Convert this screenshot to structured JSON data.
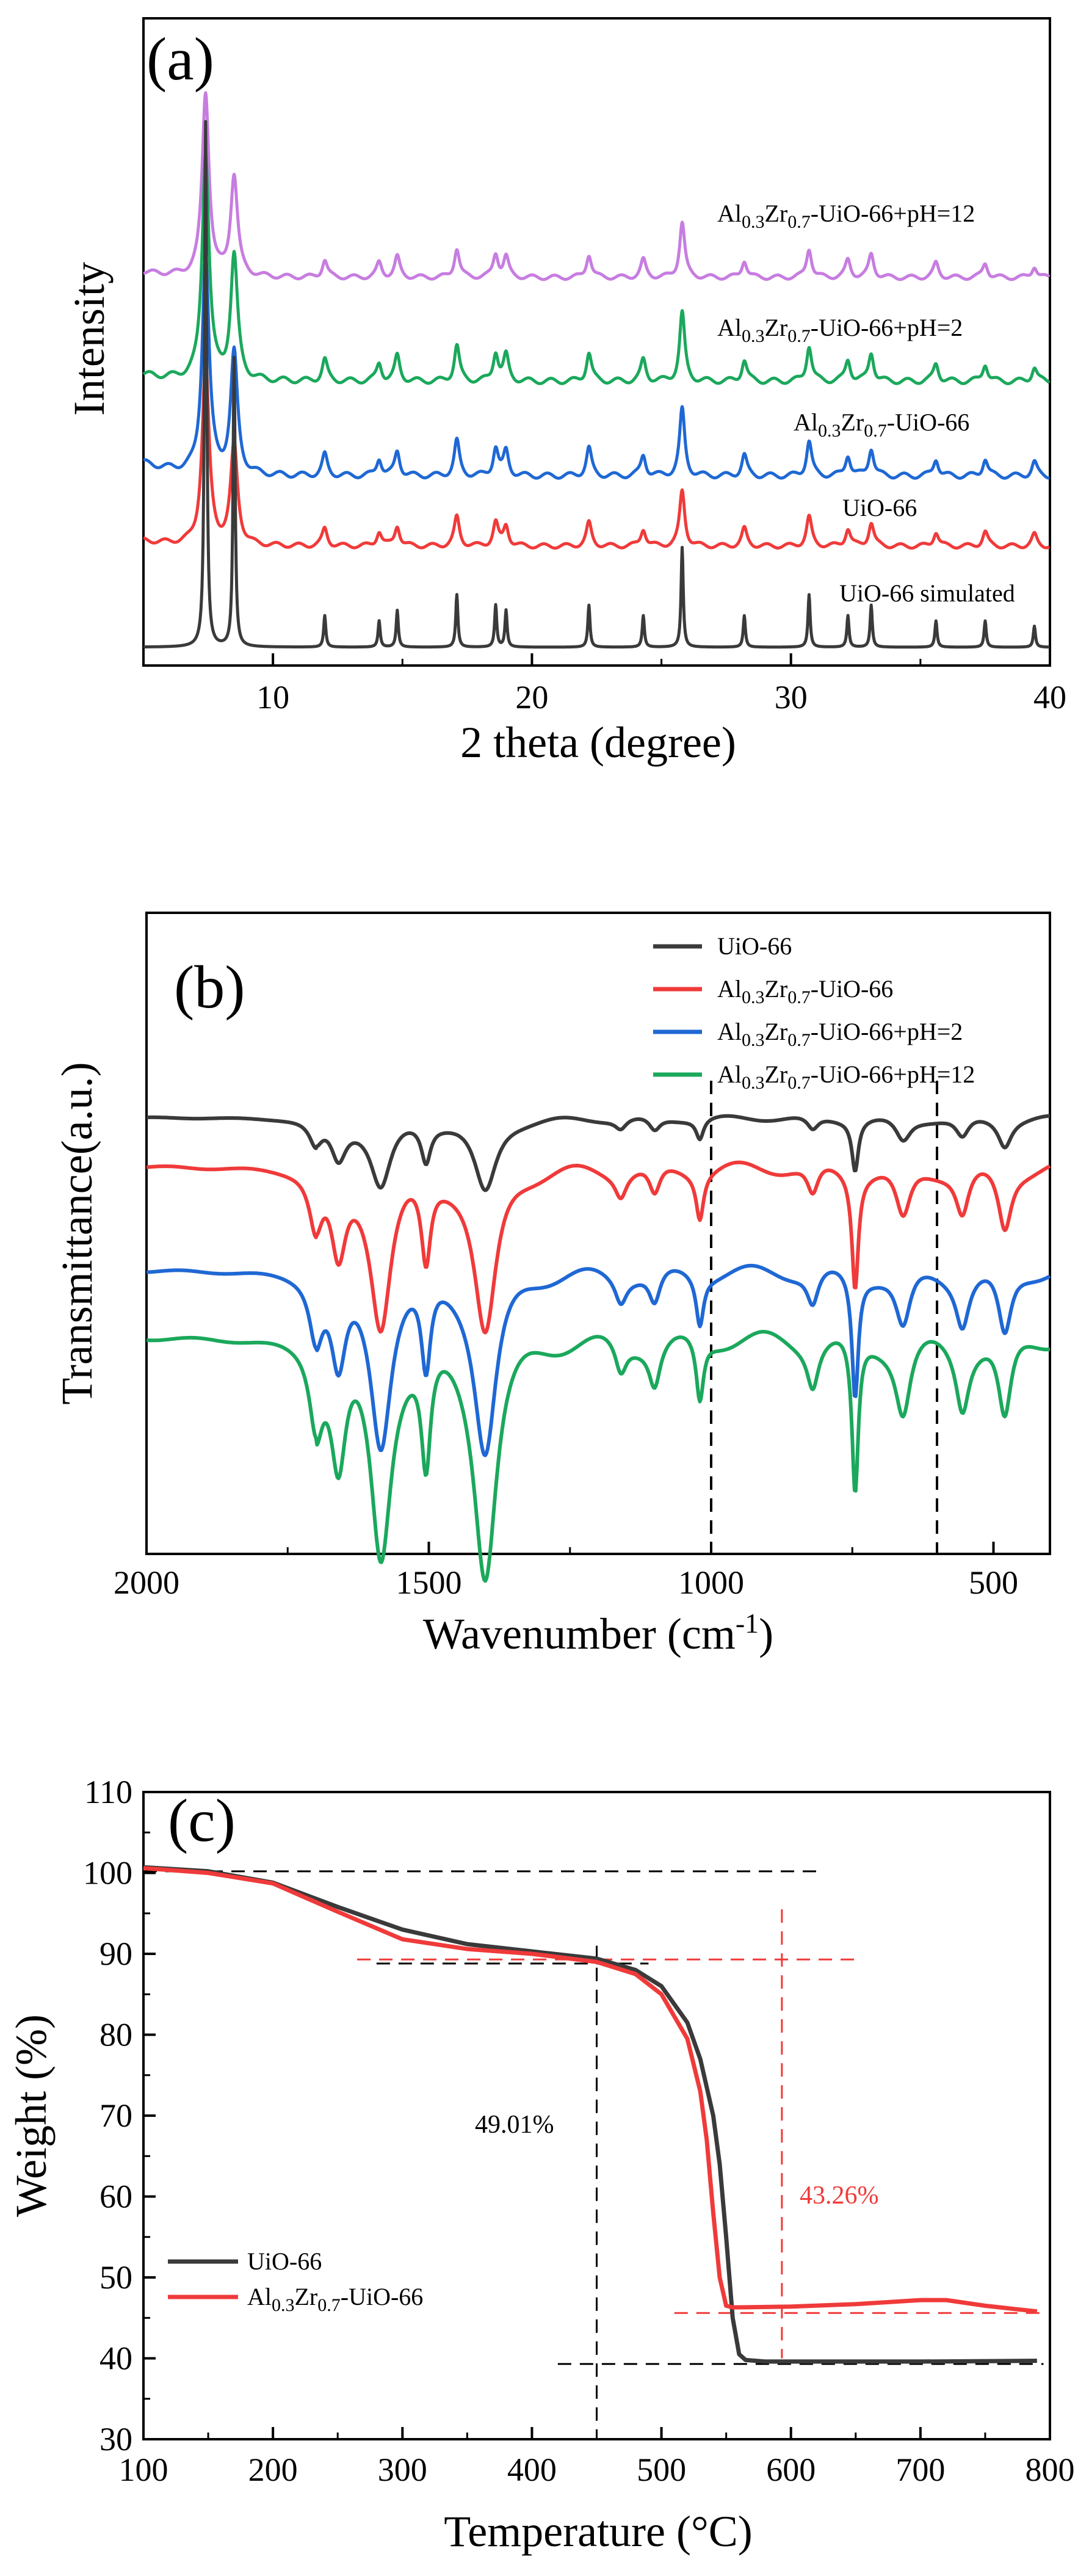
{
  "chart_data": [
    {
      "type": "line",
      "panel_label": "(a)",
      "xlabel": "2 theta (degree)",
      "ylabel": "Intensity",
      "xlim": [
        5,
        40
      ],
      "x_ticks": [
        "10",
        "20",
        "30",
        "40"
      ],
      "legend": "none (direct labels above each curve)",
      "series": [
        {
          "name": "Al0.3Zr0.7-UiO-66+pH=12",
          "label_main": "Al",
          "label_sub1": "0.3",
          "label_mid": "Zr",
          "label_sub2": "0.7",
          "label_end": "-UiO-66+pH=12",
          "color": "#c77de0",
          "offset": 4,
          "peak_scale": 0.45
        },
        {
          "name": "Al0.3Zr0.7-UiO-66+pH=2",
          "label_main": "Al",
          "label_sub1": "0.3",
          "label_mid": "Zr",
          "label_sub2": "0.7",
          "label_end": "-UiO-66+pH=2",
          "color": "#1ba85c",
          "offset": 3,
          "peak_scale": 0.55
        },
        {
          "name": "Al0.3Zr0.7-UiO-66",
          "label_main": "Al",
          "label_sub1": "0.3",
          "label_mid": "Zr",
          "label_sub2": "0.7",
          "label_end": "-UiO-66",
          "color": "#1f68d4",
          "offset": 2,
          "peak_scale": 0.55
        },
        {
          "name": "UiO-66",
          "label": "UiO-66",
          "color": "#f03a3a",
          "offset": 1,
          "peak_scale": 0.6
        },
        {
          "name": "UiO-66 simulated",
          "label": "UiO-66 simulated",
          "color": "#3a3a3a",
          "offset": 0,
          "peak_scale": 1.0
        }
      ],
      "peaks_2theta": [
        7.4,
        8.5,
        12.0,
        14.1,
        14.8,
        17.1,
        18.6,
        19.0,
        22.2,
        24.3,
        25.8,
        28.2,
        30.7,
        32.2,
        33.1,
        35.6,
        37.5,
        39.4
      ],
      "peaks_relative_intensity": [
        1.0,
        0.55,
        0.06,
        0.05,
        0.07,
        0.1,
        0.08,
        0.07,
        0.08,
        0.06,
        0.19,
        0.06,
        0.1,
        0.06,
        0.08,
        0.05,
        0.05,
        0.04
      ]
    },
    {
      "type": "line",
      "panel_label": "(b)",
      "xlabel_main": "Wavenumber (cm",
      "xlabel_sup": "-1",
      "xlabel_end": ")",
      "ylabel": "Transmittance(a.u.)",
      "xlim": [
        2000,
        400
      ],
      "x_ticks": [
        "2000",
        "1500",
        "1000",
        "500"
      ],
      "x_tick_values": [
        2000,
        1500,
        1000,
        500
      ],
      "legend_placement": "top-right",
      "series": [
        {
          "name": "UiO-66",
          "label": "UiO-66",
          "color": "#3a3a3a",
          "offset": 3,
          "depth_scale": 0.65
        },
        {
          "name": "Al0.3Zr0.7-UiO-66",
          "label_main": "Al",
          "label_sub1": "0.3",
          "label_mid": "Zr",
          "label_sub2": "0.7",
          "label_end": "-UiO-66",
          "color": "#f03a3a",
          "offset": 2,
          "depth_scale": 1.0
        },
        {
          "name": "Al0.3Zr0.7-UiO-66+pH=2",
          "label_main": "Al",
          "label_sub1": "0.3",
          "label_mid": "Zr",
          "label_sub2": "0.7",
          "label_end": "-UiO-66+pH=2",
          "color": "#1f68d4",
          "offset": 1,
          "depth_scale": 1.0
        },
        {
          "name": "Al0.3Zr0.7-UiO-66+pH=12",
          "label_main": "Al",
          "label_sub1": "0.3",
          "label_mid": "Zr",
          "label_sub2": "0.7",
          "label_end": "-UiO-66+pH=12",
          "color": "#1ba85c",
          "offset": 0,
          "depth_scale": 1.15
        }
      ],
      "bands_cm1": [
        1700,
        1660,
        1585,
        1505,
        1400,
        1160,
        1100,
        1020,
        820,
        745,
        660,
        555,
        480
      ],
      "bands_relative_depth": [
        0.35,
        0.55,
        1.0,
        0.55,
        1.1,
        0.15,
        0.2,
        0.3,
        0.2,
        0.75,
        0.35,
        0.3,
        0.4
      ],
      "reference_lines_cm1": [
        1000,
        600
      ]
    },
    {
      "type": "line",
      "panel_label": "(c)",
      "xlabel_main": "Temperature (",
      "xlabel_unit": "°C",
      "xlabel_end": ")",
      "ylabel": "Weight (%)",
      "xlim": [
        100,
        800
      ],
      "ylim": [
        30,
        110
      ],
      "x_ticks": [
        "100",
        "200",
        "300",
        "400",
        "500",
        "600",
        "700",
        "800"
      ],
      "y_ticks": [
        "30",
        "40",
        "50",
        "60",
        "70",
        "80",
        "90",
        "100",
        "110"
      ],
      "legend_placement": "bottom-left",
      "series": [
        {
          "name": "UiO-66",
          "label": "UiO-66",
          "color": "#3a3a3a",
          "x": [
            100,
            150,
            200,
            250,
            300,
            350,
            400,
            450,
            480,
            500,
            520,
            530,
            540,
            545,
            550,
            555,
            560,
            565,
            580,
            650,
            700,
            790
          ],
          "y": [
            100.7,
            100.2,
            98.8,
            95.8,
            93.0,
            91.2,
            90.3,
            89.4,
            88.0,
            86.0,
            81.5,
            77.0,
            70.0,
            64.0,
            55.0,
            45.0,
            40.5,
            39.8,
            39.6,
            39.6,
            39.6,
            39.7
          ]
        },
        {
          "name": "Al0.3Zr0.7-UiO-66",
          "label_main": "Al",
          "label_sub1": "0.3",
          "label_mid": "Zr",
          "label_sub2": "0.7",
          "label_end": "-UiO-66",
          "color": "#f03a3a",
          "x": [
            100,
            150,
            200,
            250,
            300,
            350,
            400,
            450,
            480,
            500,
            520,
            530,
            535,
            540,
            545,
            550,
            555,
            560,
            600,
            650,
            700,
            720,
            750,
            790
          ],
          "y": [
            100.6,
            100.0,
            98.7,
            95.2,
            91.8,
            90.6,
            90.0,
            89.0,
            87.5,
            85.0,
            79.5,
            73.0,
            67.0,
            58.0,
            50.0,
            46.5,
            46.3,
            46.3,
            46.4,
            46.7,
            47.2,
            47.2,
            46.5,
            45.8
          ]
        }
      ],
      "reference_lines": {
        "black": [
          {
            "x1": 100,
            "y1": 100.2,
            "x2": 620,
            "y2": 100.2
          },
          {
            "x1": 280,
            "y1": 88.8,
            "x2": 490,
            "y2": 88.8
          },
          {
            "x1": 420,
            "y1": 39.3,
            "x2": 795,
            "y2": 39.3
          },
          {
            "x1": 450,
            "y1": 91,
            "x2": 450,
            "y2": 30
          }
        ],
        "red": [
          {
            "x1": 265,
            "y1": 89.3,
            "x2": 650,
            "y2": 89.3
          },
          {
            "x1": 510,
            "y1": 45.6,
            "x2": 795,
            "y2": 45.6
          },
          {
            "x1": 593,
            "y1": 95.5,
            "x2": 593,
            "y2": 40
          }
        ]
      },
      "annotations": [
        {
          "text": "49.01%",
          "x": 395,
          "y": 73,
          "color": "#000000"
        },
        {
          "text": "43.26%",
          "x": 640,
          "y": 64,
          "color": "#f03a3a"
        }
      ]
    }
  ]
}
